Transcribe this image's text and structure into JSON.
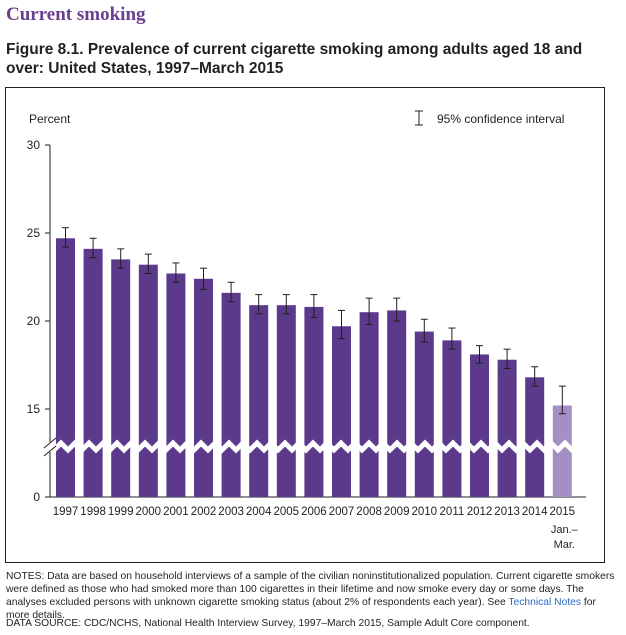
{
  "header": {
    "section_title": "Current smoking",
    "figure_title": "Figure 8.1. Prevalence of current cigarette smoking among adults aged 18 and over: United States, 1997–March 2015"
  },
  "notes": {
    "text_before": "NOTES: Data are based on household interviews of a sample of the civilian noninstitutionalized population. Current cigarette smokers were defined as those who had smoked more than 100 cigarettes in their lifetime and now smoke every day or some days. The analyses excluded persons with unknown cigarette smoking status (about 2% of respondents each year). See ",
    "link_text": "Technical Notes",
    "text_after": " for more details."
  },
  "source": "DATA SOURCE: CDC/NCHS, National Health Interview Survey, 1997–March 2015, Sample Adult Core component.",
  "colors": {
    "bar": "#5b3a8c",
    "bar_partial": "#a38fc3",
    "title": "#6b3f8f"
  },
  "chart_data": {
    "type": "bar",
    "ylabel": "Percent",
    "legend": "95% confidence interval",
    "legend_position": "top-right",
    "yticks": [
      0,
      15,
      20,
      25,
      30
    ],
    "axis_break": [
      0,
      15
    ],
    "ylim": [
      0,
      30
    ],
    "grid": false,
    "categories": [
      "1997",
      "1998",
      "1999",
      "2000",
      "2001",
      "2002",
      "2003",
      "2004",
      "2005",
      "2006",
      "2007",
      "2008",
      "2009",
      "2010",
      "2011",
      "2012",
      "2013",
      "2014",
      "2015"
    ],
    "category_sublabels": {
      "2015": "Jan.–\nMar."
    },
    "values": [
      24.7,
      24.1,
      23.5,
      23.2,
      22.7,
      22.4,
      21.6,
      20.9,
      20.9,
      20.8,
      19.7,
      20.5,
      20.6,
      19.4,
      18.9,
      18.1,
      17.8,
      16.8,
      15.2
    ],
    "ci_lower": [
      24.2,
      23.6,
      23.0,
      22.7,
      22.2,
      21.8,
      21.1,
      20.4,
      20.4,
      20.2,
      19.0,
      19.8,
      20.0,
      18.8,
      18.4,
      17.6,
      17.3,
      16.3,
      14.2
    ],
    "ci_upper": [
      25.3,
      24.7,
      24.1,
      23.8,
      23.3,
      23.0,
      22.2,
      21.5,
      21.5,
      21.5,
      20.6,
      21.3,
      21.3,
      20.1,
      19.6,
      18.6,
      18.4,
      17.4,
      16.3
    ]
  }
}
